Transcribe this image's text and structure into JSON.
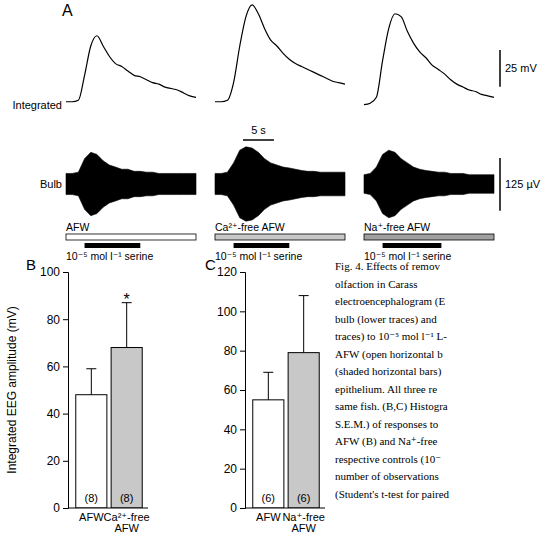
{
  "chart_data": [
    {
      "type": "line",
      "title": "A",
      "row_labels": [
        "Integrated",
        "Bulb"
      ],
      "x": [
        0,
        1,
        2,
        3,
        4,
        5,
        6,
        7,
        8,
        9,
        10,
        11,
        12,
        13,
        14,
        15,
        16,
        17,
        18,
        19,
        20,
        21
      ],
      "xlim": [
        0,
        21
      ],
      "ylim": [
        -5,
        70
      ],
      "y2lim": [
        -90,
        90
      ],
      "tick_labels": false,
      "scale_bars": {
        "y": {
          "value": 25,
          "label": "25 mV"
        },
        "y2": {
          "value": 125,
          "label": "125 µV"
        },
        "x": {
          "value": 5,
          "label": "5 s"
        }
      },
      "sweeps": [
        {
          "condition": "AFW",
          "color": "#ffffff",
          "stimulus": "10⁻⁵ mol l⁻¹ serine",
          "stimulus_on": [
            3,
            12
          ],
          "integrated": [
            2,
            2,
            3,
            20,
            40,
            47,
            40,
            33,
            28,
            26,
            23,
            20,
            19,
            17,
            15,
            14,
            12,
            11,
            10,
            8,
            6,
            5
          ],
          "bulb": [
            25,
            25,
            28,
            60,
            75,
            70,
            55,
            45,
            40,
            35,
            35,
            30,
            30,
            28,
            28,
            25,
            25,
            25,
            25,
            25,
            25,
            25
          ]
        },
        {
          "condition": "Ca²⁺-free AFW",
          "color": "#c8c8c8",
          "stimulus": "10⁻⁵ mol l⁻¹ serine",
          "stimulus_on": [
            3,
            12
          ],
          "integrated": [
            2,
            2,
            3,
            15,
            40,
            60,
            68,
            62,
            52,
            44,
            40,
            35,
            31,
            28,
            26,
            24,
            22,
            20,
            18,
            16,
            15,
            14
          ],
          "bulb": [
            25,
            25,
            28,
            50,
            80,
            88,
            85,
            75,
            60,
            50,
            45,
            40,
            38,
            35,
            32,
            30,
            30,
            28,
            28,
            28,
            28,
            28
          ]
        },
        {
          "condition": "Na⁺-free AFW",
          "color": "#a0a0a0",
          "stimulus": "10⁻⁵ mol l⁻¹ serine",
          "stimulus_on": [
            3,
            12.5
          ],
          "integrated": [
            0,
            1,
            5,
            30,
            52,
            62,
            60,
            50,
            42,
            36,
            32,
            27,
            24,
            21,
            17,
            14,
            12,
            10,
            9,
            7,
            6,
            5
          ],
          "bulb": [
            22,
            25,
            40,
            70,
            80,
            75,
            60,
            50,
            40,
            35,
            32,
            30,
            28,
            28,
            25,
            25,
            25,
            22,
            22,
            22,
            22,
            22
          ]
        }
      ]
    },
    {
      "type": "bar",
      "title": "B",
      "y_label": "Integrated EEG amplitude (mV)",
      "categories": [
        "AFW",
        "Ca²⁺-free AFW"
      ],
      "values": [
        48,
        68
      ],
      "errors": [
        11,
        19
      ],
      "colors": [
        "#ffffff",
        "#c8c8c8"
      ],
      "n_labels": [
        "(8)",
        "(8)"
      ],
      "significance": [
        null,
        "*"
      ],
      "ylim": [
        0,
        100
      ],
      "yticks": [
        0,
        20,
        40,
        60,
        80,
        100
      ]
    },
    {
      "type": "bar",
      "title": "C",
      "categories": [
        "AFW",
        "Na⁺-free AFW"
      ],
      "values": [
        55,
        79
      ],
      "errors": [
        14,
        29
      ],
      "colors": [
        "#ffffff",
        "#c8c8c8"
      ],
      "n_labels": [
        "(6)",
        "(6)"
      ],
      "ylim": [
        0,
        120
      ],
      "yticks": [
        0,
        20,
        40,
        60,
        80,
        100,
        120
      ]
    }
  ],
  "caption": [
    "Fig. 4. Effects of remov",
    "olfaction in Carass",
    "electroencephalogram (E",
    "bulb (lower traces) and",
    "traces) to 10⁻⁵ mol l⁻¹ L-",
    "AFW (open horizontal b",
    "(shaded horizontal bars)",
    "epithelium. All three re",
    "same fish. (B,C) Histogra",
    "S.E.M.) of responses to",
    "AFW (B) and Na⁺-free",
    "respective controls (10⁻",
    "number of observations",
    "(Student's t-test for paired"
  ]
}
